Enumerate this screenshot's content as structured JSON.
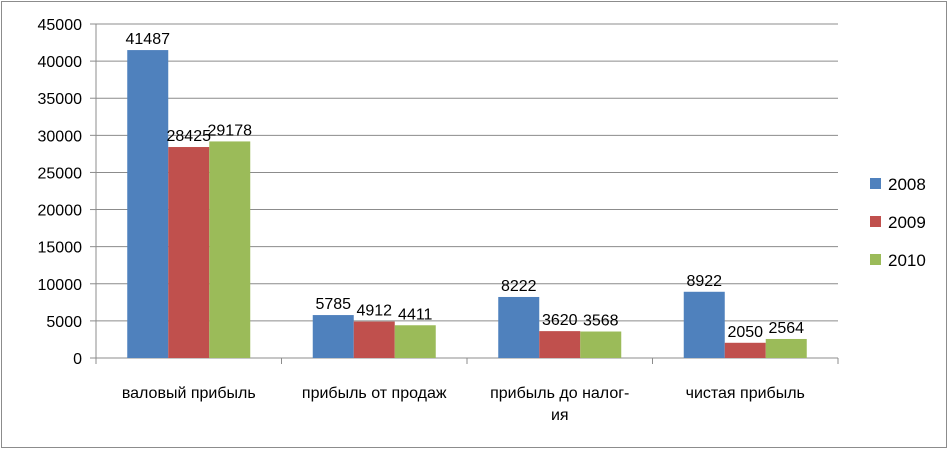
{
  "chart_data": {
    "type": "bar",
    "title": "",
    "xlabel": "",
    "ylabel": "",
    "ylim": [
      0,
      45000
    ],
    "ytick_step": 5000,
    "grid": true,
    "legend_position": "right",
    "categories": [
      [
        "валовый прибыль"
      ],
      [
        "прибыль от продаж"
      ],
      [
        "прибыль до налог-",
        "ия"
      ],
      [
        "чистая прибыль"
      ]
    ],
    "series": [
      {
        "name": "2008",
        "color": "#4f81bd",
        "values": [
          41487,
          5785,
          8222,
          8922
        ]
      },
      {
        "name": "2009",
        "color": "#c0504d",
        "values": [
          28425,
          4912,
          3620,
          2050
        ]
      },
      {
        "name": "2010",
        "color": "#9bbb59",
        "values": [
          29178,
          4411,
          3568,
          2564
        ]
      }
    ]
  }
}
